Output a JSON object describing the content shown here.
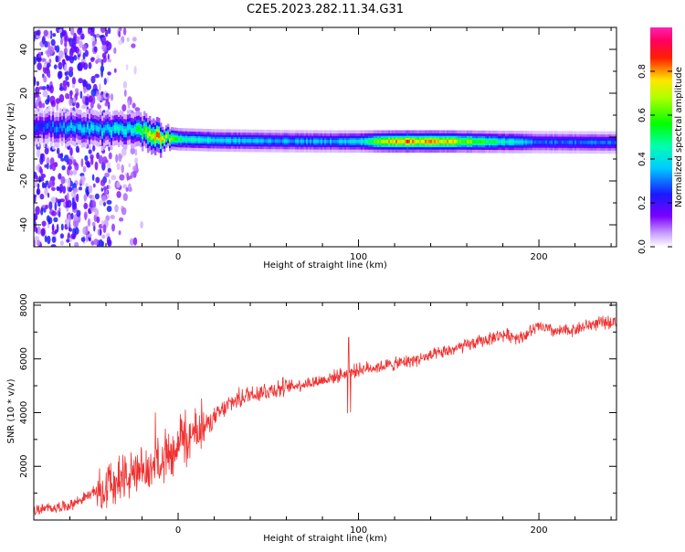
{
  "figure": {
    "title": "C2E5.2023.282.11.34.G31"
  },
  "chart_data": [
    {
      "type": "heatmap",
      "title": "C2E5.2023.282.11.34.G31",
      "xlabel": "Height of straight line (km)",
      "ylabel": "Frequency (Hz)",
      "xlim": [
        -80,
        243
      ],
      "ylim": [
        -50,
        50
      ],
      "xticks": [
        0,
        100,
        200
      ],
      "yticks": [
        -40,
        -20,
        0,
        20,
        40
      ],
      "xtick_labels": [
        "0",
        "100",
        "200"
      ],
      "ytick_labels": [
        "-40",
        "-20",
        "0",
        "20",
        "40"
      ],
      "colorbar": {
        "label": "Normalized spectral amplitude",
        "range": [
          0,
          1
        ],
        "ticks": [
          0.0,
          0.2,
          0.4,
          0.6,
          0.8
        ],
        "tick_labels": [
          "0.0",
          "0.2",
          "0.4",
          "0.6",
          "0.8"
        ],
        "colormap": "rainbow (white-violet-blue-cyan-green-yellow-red-magenta)"
      },
      "ridge": {
        "x": [
          -80,
          -60,
          -40,
          -25,
          -10,
          0,
          20,
          50,
          80,
          100,
          120,
          150,
          180,
          200,
          243
        ],
        "freq": [
          5,
          4,
          3,
          4,
          0,
          -1,
          -1.5,
          -1.8,
          -2,
          -2,
          -2,
          -2,
          -2.2,
          -2.3,
          -2.5
        ],
        "peak_amplitude": [
          0.25,
          0.35,
          0.4,
          0.45,
          0.85,
          0.5,
          0.4,
          0.35,
          0.35,
          0.4,
          0.85,
          0.75,
          0.45,
          0.3,
          0.3
        ]
      },
      "grid": false
    },
    {
      "type": "line",
      "xlabel": "Height of straight line (km)",
      "ylabel": "SNR (10 * v/v)",
      "xlim": [
        -80,
        243
      ],
      "ylim": [
        0,
        8100
      ],
      "xticks": [
        0,
        100,
        200
      ],
      "yticks": [
        2000,
        4000,
        6000,
        8000
      ],
      "xtick_labels": [
        "0",
        "100",
        "200"
      ],
      "ytick_labels": [
        "2000",
        "4000",
        "6000",
        "8000"
      ],
      "series": [
        {
          "color": "#f03030",
          "x": [
            -80,
            -60,
            -50,
            -40,
            -30,
            -20,
            -10,
            0,
            10,
            20,
            30,
            40,
            60,
            80,
            90,
            100,
            120,
            140,
            160,
            180,
            190,
            200,
            210,
            220,
            230,
            243
          ],
          "y": [
            350,
            550,
            900,
            1300,
            1600,
            1700,
            2300,
            2800,
            3200,
            3800,
            4400,
            4700,
            4950,
            5200,
            5400,
            5600,
            5800,
            6100,
            6500,
            6900,
            6800,
            7200,
            7000,
            7100,
            7300,
            7400
          ]
        }
      ],
      "grid": false
    }
  ]
}
